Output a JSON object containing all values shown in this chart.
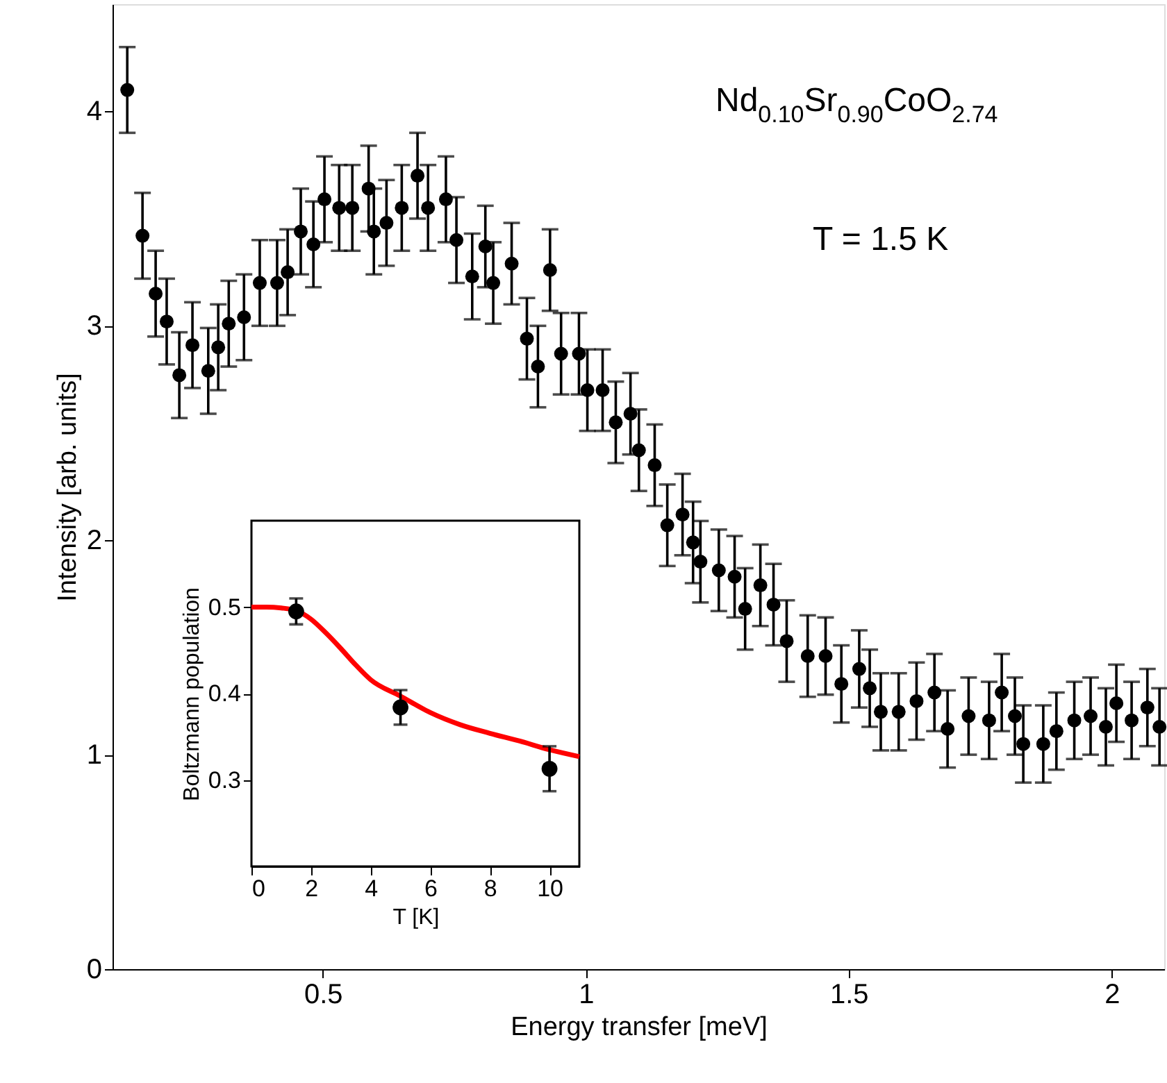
{
  "chart_data": [
    {
      "type": "scatter",
      "xlabel": "Energy transfer [meV]",
      "ylabel": "Intensity [arb. units]",
      "xlim": [
        0.1,
        2.1
      ],
      "ylim": [
        0,
        4.5
      ],
      "xticks": [
        0.5,
        1,
        1.5,
        2
      ],
      "yticks": [
        0,
        1,
        2,
        3,
        4
      ],
      "grid": false,
      "marker": "circle",
      "annotations": [
        "Nd$_{0.10}$Sr$_{0.90}$CoO$_{2.74}$",
        "T = 1.5 K"
      ],
      "x": [
        0.128,
        0.157,
        0.182,
        0.203,
        0.227,
        0.252,
        0.282,
        0.301,
        0.321,
        0.35,
        0.38,
        0.413,
        0.433,
        0.458,
        0.482,
        0.503,
        0.531,
        0.556,
        0.587,
        0.597,
        0.621,
        0.65,
        0.68,
        0.7,
        0.734,
        0.754,
        0.784,
        0.809,
        0.824,
        0.859,
        0.888,
        0.909,
        0.932,
        0.953,
        0.987,
        1.003,
        1.032,
        1.057,
        1.085,
        1.101,
        1.131,
        1.155,
        1.184,
        1.204,
        1.218,
        1.253,
        1.283,
        1.303,
        1.332,
        1.357,
        1.382,
        1.422,
        1.456,
        1.486,
        1.52,
        1.54,
        1.561,
        1.595,
        1.629,
        1.663,
        1.688,
        1.728,
        1.767,
        1.791,
        1.816,
        1.832,
        1.87,
        1.895,
        1.929,
        1.96,
        1.989,
        2.009,
        2.038,
        2.068,
        2.091
      ],
      "series": [
        {
          "color": "#000000",
          "values": [
            4.1,
            3.42,
            3.15,
            3.02,
            2.77,
            2.91,
            2.79,
            2.9,
            3.01,
            3.04,
            3.2,
            3.2,
            3.25,
            3.44,
            3.38,
            3.59,
            3.55,
            3.55,
            3.64,
            3.44,
            3.48,
            3.55,
            3.7,
            3.55,
            3.59,
            3.4,
            3.23,
            3.37,
            3.2,
            3.29,
            2.94,
            2.81,
            3.26,
            2.87,
            2.87,
            2.7,
            2.7,
            2.55,
            2.59,
            2.42,
            2.35,
            2.07,
            2.12,
            1.99,
            1.9,
            1.86,
            1.83,
            1.68,
            1.79,
            1.7,
            1.53,
            1.46,
            1.46,
            1.33,
            1.4,
            1.31,
            1.2,
            1.2,
            1.25,
            1.29,
            1.12,
            1.18,
            1.16,
            1.29,
            1.18,
            1.05,
            1.05,
            1.11,
            1.16,
            1.18,
            1.13,
            1.24,
            1.16,
            1.22,
            1.13
          ],
          "errors": [
            0.2,
            0.2,
            0.2,
            0.2,
            0.2,
            0.2,
            0.2,
            0.2,
            0.2,
            0.2,
            0.2,
            0.2,
            0.2,
            0.2,
            0.2,
            0.2,
            0.2,
            0.2,
            0.2,
            0.2,
            0.2,
            0.2,
            0.2,
            0.2,
            0.2,
            0.2,
            0.2,
            0.19,
            0.19,
            0.19,
            0.19,
            0.19,
            0.19,
            0.19,
            0.19,
            0.19,
            0.19,
            0.19,
            0.19,
            0.19,
            0.19,
            0.19,
            0.19,
            0.19,
            0.19,
            0.19,
            0.19,
            0.19,
            0.19,
            0.19,
            0.19,
            0.19,
            0.18,
            0.18,
            0.18,
            0.18,
            0.18,
            0.18,
            0.18,
            0.18,
            0.18,
            0.18,
            0.18,
            0.18,
            0.18,
            0.18,
            0.18,
            0.18,
            0.18,
            0.18,
            0.18,
            0.18,
            0.18,
            0.18,
            0.18
          ]
        }
      ]
    },
    {
      "type": "scatter",
      "xlabel": "T [K]",
      "ylabel": "Boltzmann population",
      "xlim": [
        0,
        11
      ],
      "ylim": [
        0.2,
        0.6
      ],
      "xticks": [
        0,
        2,
        4,
        6,
        8,
        10
      ],
      "yticks": [
        0.3,
        0.4,
        0.5
      ],
      "grid": false,
      "series": [
        {
          "type": "line",
          "color": "#ff0000",
          "marker": "none",
          "line_style": "solid",
          "x": [
            0,
            0.5,
            1,
            1.5,
            2,
            2.5,
            3,
            3.5,
            4,
            5,
            6,
            7,
            8,
            9,
            10,
            11
          ],
          "values": [
            0.5,
            0.5,
            0.499,
            0.496,
            0.486,
            0.47,
            0.452,
            0.433,
            0.416,
            0.397,
            0.378,
            0.364,
            0.354,
            0.345,
            0.335,
            0.327
          ]
        },
        {
          "type": "scatter",
          "color": "#000000",
          "marker": "circle",
          "x": [
            1.5,
            5,
            10
          ],
          "values": [
            0.495,
            0.384,
            0.313
          ],
          "errors": [
            0.015,
            0.02,
            0.026
          ]
        }
      ]
    }
  ]
}
